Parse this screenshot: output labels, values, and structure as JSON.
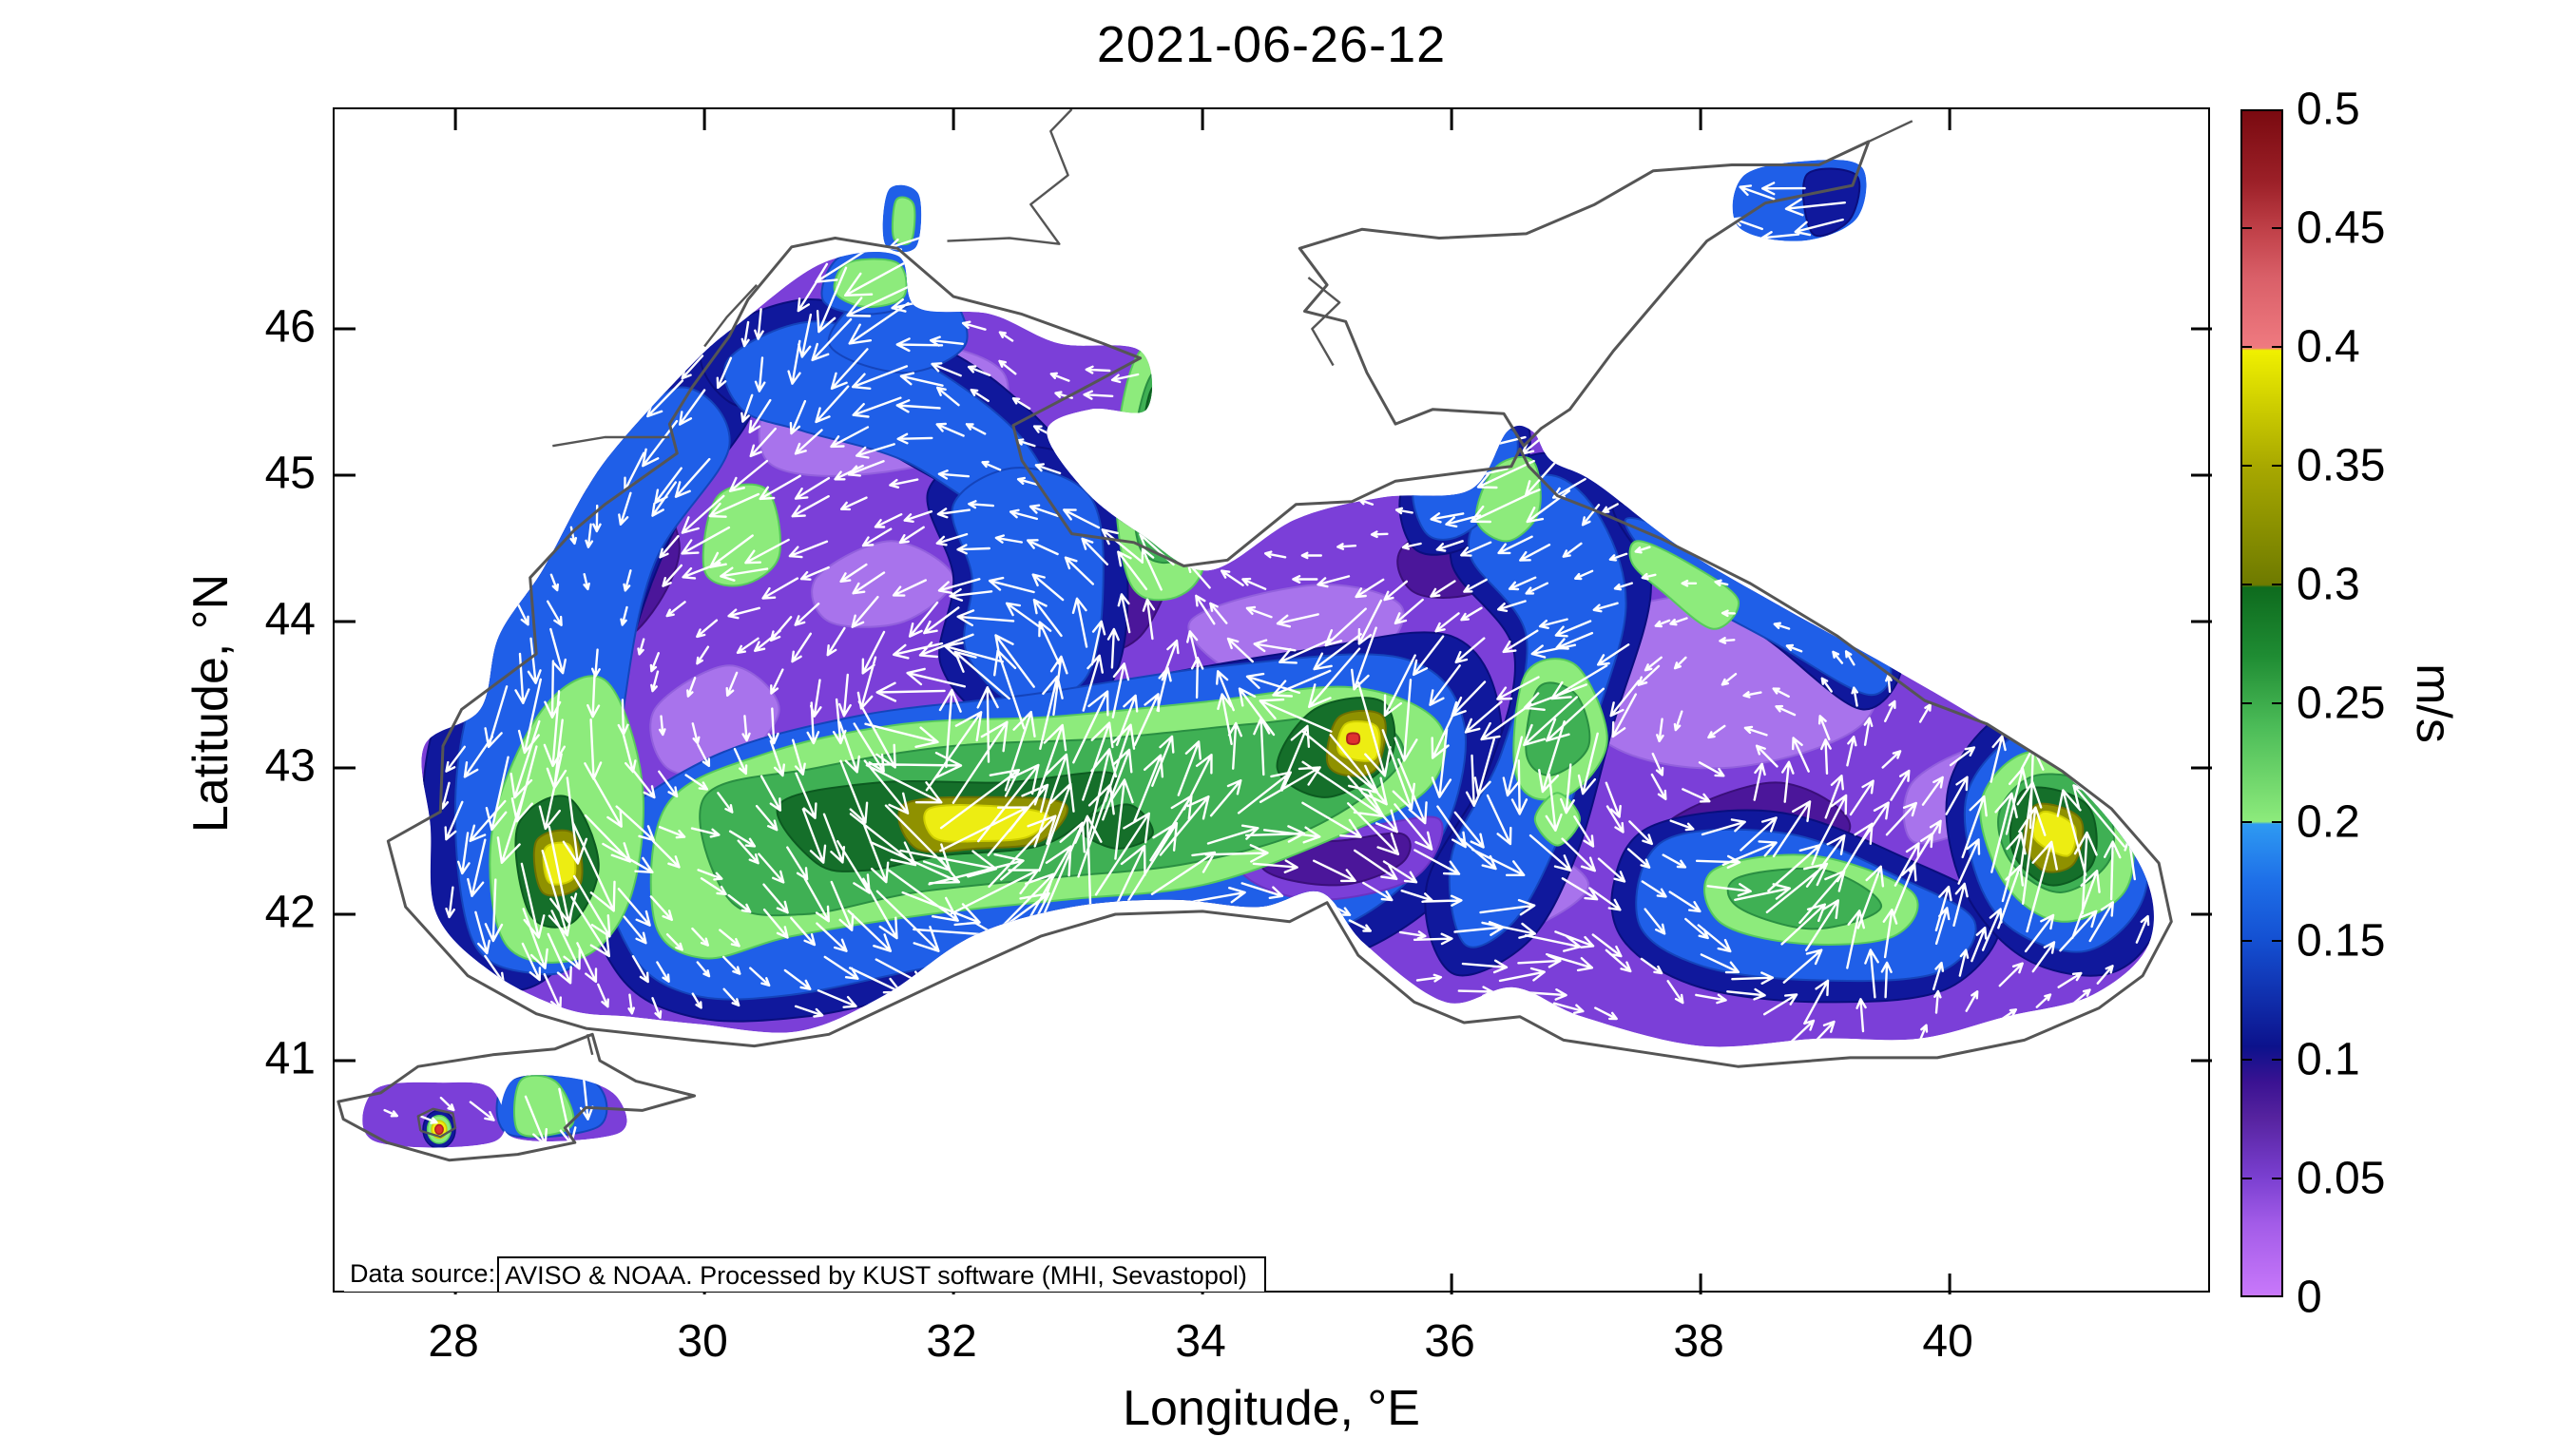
{
  "title": "2021-06-26-12",
  "axes": {
    "xlabel": "Longitude, °E",
    "ylabel": "Latitude, °N",
    "x_tick_labels": [
      "28",
      "30",
      "32",
      "34",
      "36",
      "38",
      "40"
    ],
    "x_tick_values": [
      28,
      30,
      32,
      34,
      36,
      38,
      40
    ],
    "y_tick_labels": [
      "46",
      "45",
      "44",
      "43",
      "42",
      "41"
    ],
    "y_tick_values": [
      46,
      45,
      44,
      43,
      42,
      41
    ]
  },
  "colorbar": {
    "label": "m/s",
    "min": 0,
    "max": 0.5,
    "tick_labels": [
      "0.5",
      "0.45",
      "0.4",
      "0.35",
      "0.3",
      "0.25",
      "0.2",
      "0.15",
      "0.1",
      "0.05",
      "0"
    ],
    "tick_values": [
      0.5,
      0.45,
      0.4,
      0.35,
      0.3,
      0.25,
      0.2,
      0.15,
      0.1,
      0.05,
      0
    ],
    "colormap_stops": [
      [
        0,
        "#c878fa"
      ],
      [
        0.03,
        "#a35ce8"
      ],
      [
        0.05,
        "#7a3fd0"
      ],
      [
        0.075,
        "#56239f"
      ],
      [
        0.09,
        "#3a1292"
      ],
      [
        0.105,
        "#0c128c"
      ],
      [
        0.15,
        "#1450d2"
      ],
      [
        0.175,
        "#1e6fe8"
      ],
      [
        0.199,
        "#2e9af2"
      ],
      [
        0.2,
        "#8deb7c"
      ],
      [
        0.24,
        "#4cbc58"
      ],
      [
        0.27,
        "#1f8c33"
      ],
      [
        0.299,
        "#0e6b1e"
      ],
      [
        0.3,
        "#6e7a00"
      ],
      [
        0.35,
        "#a8a800"
      ],
      [
        0.399,
        "#f0f000"
      ],
      [
        0.4,
        "#ef7a80"
      ],
      [
        0.43,
        "#d95f68"
      ],
      [
        0.45,
        "#c04048"
      ],
      [
        0.47,
        "#9c2028"
      ],
      [
        0.5,
        "#7a0a10"
      ]
    ]
  },
  "annotation": {
    "label": "Data source:",
    "text": "AVISO & NOAA. Processed by KUST software (MHI, Sevastopol)"
  },
  "colors": {
    "background": "#ffffff",
    "frame": "#000000",
    "coastline": "#555555",
    "arrows": "#ffffff"
  },
  "chart_data": {
    "type": "heatmap",
    "subtype": "geographic vector field: surface current speed (filled contours) + velocity arrows (quiver)",
    "region": "Black Sea, Sea of Azov and Sea of Marmara",
    "title": "2021-06-26-12",
    "xlabel": "Longitude, °E",
    "ylabel": "Latitude, °N",
    "x_ticks": [
      28,
      30,
      32,
      34,
      36,
      38,
      40
    ],
    "y_ticks": [
      41,
      42,
      43,
      44,
      45,
      46
    ],
    "xlim": [
      27.0,
      42.1
    ],
    "ylim": [
      39.4,
      47.5
    ],
    "grid": false,
    "units": "m/s",
    "legend_position": "right colorbar",
    "colorbar_ticks": [
      0,
      0.05,
      0.1,
      0.15,
      0.2,
      0.25,
      0.3,
      0.35,
      0.4,
      0.45,
      0.5
    ],
    "colorbar_range": [
      0,
      0.5
    ],
    "speed_maxima_estimated": [
      {
        "lon": 32.3,
        "lat": 42.55,
        "speed": 0.4
      },
      {
        "lon": 35.2,
        "lat": 43.2,
        "speed": 0.42
      },
      {
        "lon": 28.8,
        "lat": 42.3,
        "speed": 0.38
      },
      {
        "lon": 40.8,
        "lat": 42.5,
        "speed": 0.4
      },
      {
        "lon": 27.9,
        "lat": 40.55,
        "speed": 0.5
      }
    ],
    "background_speed_range": [
      0.0,
      0.1
    ],
    "annotation": "Data source: AVISO & NOAA. Processed by KUST software (MHI, Sevastopol)"
  }
}
